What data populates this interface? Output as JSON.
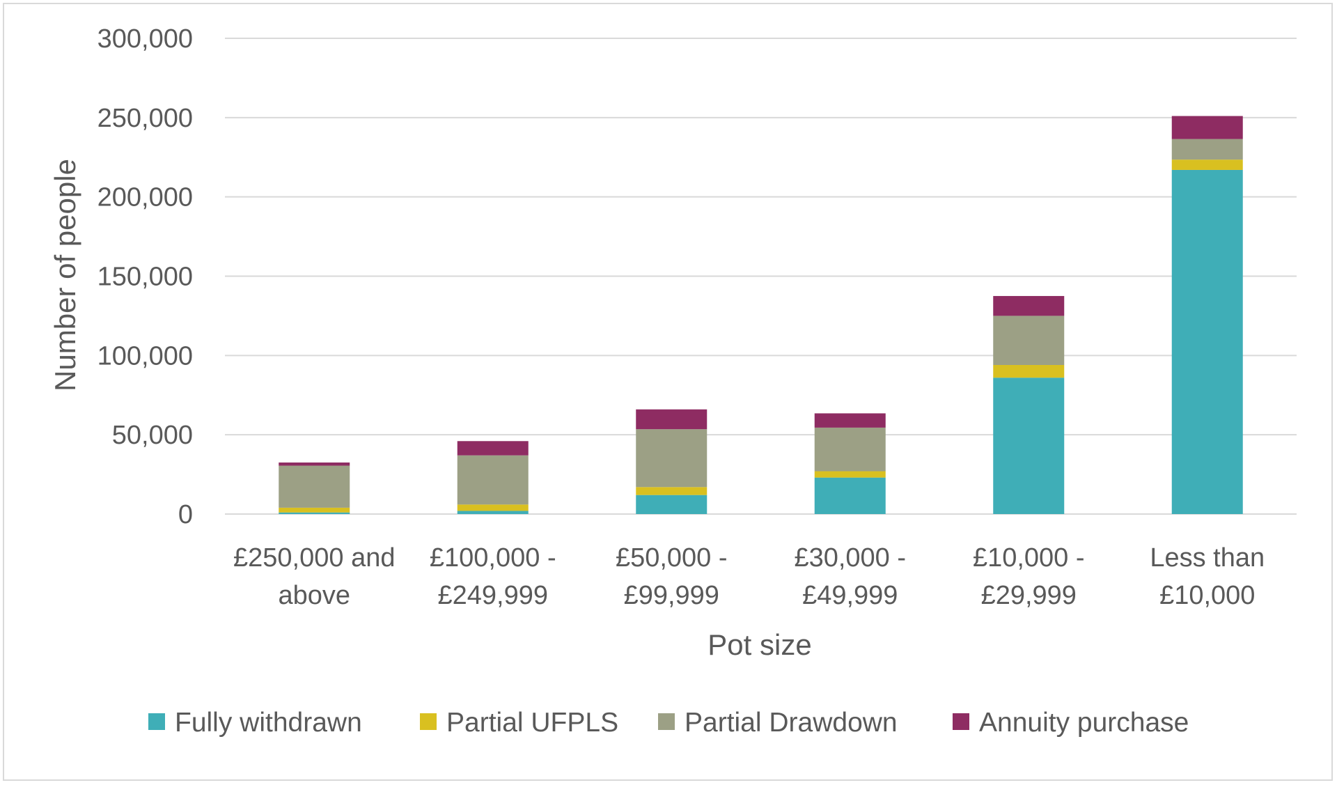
{
  "chart_data": {
    "type": "bar",
    "stacked": true,
    "title": "",
    "xlabel": "Pot size",
    "ylabel": "Number of people",
    "ylim": [
      0,
      300000
    ],
    "yticks": [
      0,
      50000,
      100000,
      150000,
      200000,
      250000,
      300000
    ],
    "ytick_labels": [
      "0",
      "50,000",
      "100,000",
      "150,000",
      "200,000",
      "250,000",
      "300,000"
    ],
    "grid": true,
    "legend_position": "bottom",
    "categories": [
      [
        "£250,000 and",
        "above"
      ],
      [
        "£100,000 -",
        "£249,999"
      ],
      [
        "£50,000 -",
        "£99,999"
      ],
      [
        "£30,000 -",
        "£49,999"
      ],
      [
        "£10,000 -",
        "£29,999"
      ],
      [
        "Less than",
        "£10,000"
      ]
    ],
    "series": [
      {
        "name": "Fully withdrawn",
        "color": "#3faeb7",
        "values": [
          1000,
          2000,
          12000,
          23000,
          86000,
          217000
        ]
      },
      {
        "name": "Partial UFPLS",
        "color": "#d9c020",
        "values": [
          3000,
          4000,
          5000,
          4000,
          8000,
          6500
        ]
      },
      {
        "name": "Partial Drawdown",
        "color": "#9ca085",
        "values": [
          26500,
          31000,
          36500,
          27500,
          31000,
          13000
        ]
      },
      {
        "name": "Annuity purchase",
        "color": "#8e2c62",
        "values": [
          2000,
          9000,
          12500,
          9000,
          12500,
          14500
        ]
      }
    ]
  }
}
